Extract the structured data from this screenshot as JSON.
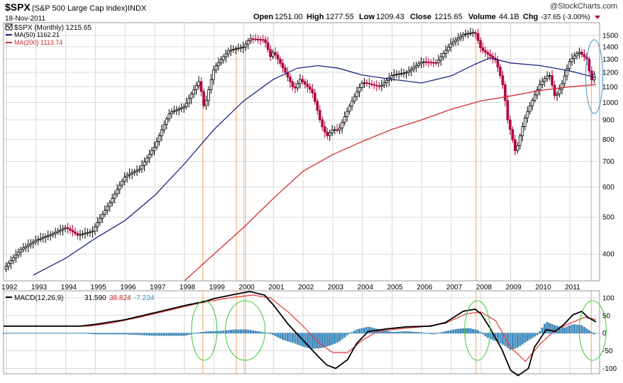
{
  "header": {
    "symbol": "$SPX",
    "name": "(S&P 500 Large Cap Index)",
    "exchange": "INDX",
    "date": "18-Nov-2011",
    "watermark": "@StockCharts.com",
    "open_label": "Open",
    "open": "1251.00",
    "high_label": "High",
    "high": "1277.55",
    "low_label": "Low",
    "low": "1209.43",
    "close_label": "Close",
    "close": "1215.65",
    "volume_label": "Volume",
    "volume": "44.1B",
    "chg_label": "Chg",
    "chg": "-37.65 (-3.00%)"
  },
  "legend": {
    "price": "$SPX (Monthly) 1215.65",
    "ma50": "MA(50) 1162.21",
    "ma200": "MA(200) 1113.74"
  },
  "macd_legend": {
    "label": "MACD(12,26,9)",
    "macd": "31.590",
    "signal": "38.824",
    "hist": "-7.234"
  },
  "colors": {
    "up": "#000000",
    "down": "#b0003c",
    "ma50": "#1a237e",
    "ma200": "#d32f2f",
    "macd": "#000000",
    "signal": "#e53935",
    "hist": "#3d8fc6",
    "vline": "#f4a261",
    "circle_green": "#33cc33",
    "circle_blue": "#3d8fc6"
  },
  "chart_data": [
    {
      "type": "candlestick",
      "title": "$SPX (Monthly)",
      "y_scale": "log",
      "ylim": [
        340,
        1620
      ],
      "y_ticks": [
        400,
        500,
        600,
        700,
        800,
        900,
        1000,
        1100,
        1200,
        1300,
        1400,
        1500
      ],
      "x_ticks": [
        "1992",
        "1993",
        "1994",
        "1995",
        "1996",
        "1997",
        "1998",
        "1999",
        "2000",
        "2001",
        "2002",
        "2003",
        "2004",
        "2005",
        "2006",
        "2007",
        "2008",
        "2009",
        "2010",
        "2011"
      ],
      "x_tick_years": [
        1992,
        1993,
        1994,
        1995,
        1996,
        1997,
        1998,
        1999,
        2000,
        2001,
        2002,
        2003,
        2004,
        2005,
        2006,
        2007,
        2008,
        2009,
        2010,
        2011
      ],
      "xlim": [
        1991.9,
        2012.0
      ],
      "price_path": [
        [
          1991.9,
          365
        ],
        [
          1992.5,
          412
        ],
        [
          1993.0,
          435
        ],
        [
          1993.5,
          450
        ],
        [
          1994.0,
          470
        ],
        [
          1994.4,
          448
        ],
        [
          1994.9,
          459
        ],
        [
          1995.5,
          548
        ],
        [
          1996.0,
          640
        ],
        [
          1996.5,
          670
        ],
        [
          1997.0,
          766
        ],
        [
          1997.5,
          940
        ],
        [
          1998.0,
          975
        ],
        [
          1998.5,
          1140
        ],
        [
          1998.67,
          960
        ],
        [
          1999.0,
          1230
        ],
        [
          1999.5,
          1370
        ],
        [
          2000.0,
          1400
        ],
        [
          2000.2,
          1470
        ],
        [
          2000.7,
          1460
        ],
        [
          2000.9,
          1320
        ],
        [
          2001.0,
          1360
        ],
        [
          2001.7,
          1080
        ],
        [
          2001.9,
          1150
        ],
        [
          2002.3,
          1070
        ],
        [
          2002.6,
          880
        ],
        [
          2002.8,
          815
        ],
        [
          2003.0,
          850
        ],
        [
          2003.2,
          845
        ],
        [
          2003.6,
          990
        ],
        [
          2004.0,
          1130
        ],
        [
          2004.6,
          1100
        ],
        [
          2005.0,
          1180
        ],
        [
          2005.5,
          1200
        ],
        [
          2006.0,
          1280
        ],
        [
          2006.5,
          1270
        ],
        [
          2007.0,
          1430
        ],
        [
          2007.4,
          1510
        ],
        [
          2007.8,
          1530
        ],
        [
          2008.0,
          1380
        ],
        [
          2008.5,
          1290
        ],
        [
          2008.75,
          1100
        ],
        [
          2008.9,
          900
        ],
        [
          2009.17,
          735
        ],
        [
          2009.5,
          920
        ],
        [
          2010.0,
          1120
        ],
        [
          2010.3,
          1190
        ],
        [
          2010.5,
          1030
        ],
        [
          2010.7,
          1100
        ],
        [
          2011.0,
          1290
        ],
        [
          2011.3,
          1360
        ],
        [
          2011.6,
          1290
        ],
        [
          2011.7,
          1130
        ],
        [
          2011.88,
          1216
        ]
      ],
      "ma50_path": [
        [
          1992.9,
          352
        ],
        [
          1994.0,
          390
        ],
        [
          1995.0,
          440
        ],
        [
          1996.0,
          490
        ],
        [
          1997.0,
          570
        ],
        [
          1998.0,
          690
        ],
        [
          1999.0,
          850
        ],
        [
          2000.0,
          1010
        ],
        [
          2001.0,
          1150
        ],
        [
          2001.8,
          1230
        ],
        [
          2002.5,
          1250
        ],
        [
          2003.2,
          1230
        ],
        [
          2004.0,
          1180
        ],
        [
          2005.0,
          1150
        ],
        [
          2006.0,
          1125
        ],
        [
          2007.0,
          1175
        ],
        [
          2007.8,
          1260
        ],
        [
          2008.3,
          1310
        ],
        [
          2009.0,
          1270
        ],
        [
          2010.0,
          1250
        ],
        [
          2011.0,
          1210
        ],
        [
          2011.88,
          1162
        ]
      ],
      "ma200_path": [
        [
          1998.0,
          340
        ],
        [
          1999.0,
          400
        ],
        [
          2000.0,
          470
        ],
        [
          2001.0,
          560
        ],
        [
          2002.0,
          660
        ],
        [
          2003.0,
          730
        ],
        [
          2004.0,
          790
        ],
        [
          2005.0,
          850
        ],
        [
          2006.0,
          900
        ],
        [
          2007.0,
          960
        ],
        [
          2008.0,
          1010
        ],
        [
          2009.0,
          1040
        ],
        [
          2010.0,
          1075
        ],
        [
          2011.0,
          1100
        ],
        [
          2011.88,
          1114
        ]
      ]
    },
    {
      "type": "line",
      "title": "MACD(12,26,9)",
      "ylim": [
        -115,
        120
      ],
      "y_ticks": [
        100,
        50,
        0,
        -50,
        -100
      ],
      "xlim": [
        1991.9,
        2012.0
      ],
      "macd_path": [
        [
          1991.9,
          20
        ],
        [
          1994.5,
          20
        ],
        [
          1995.0,
          25
        ],
        [
          1996.0,
          38
        ],
        [
          1997.0,
          58
        ],
        [
          1998.0,
          78
        ],
        [
          1998.7,
          90
        ],
        [
          1999.0,
          98
        ],
        [
          1999.7,
          110
        ],
        [
          2000.2,
          118
        ],
        [
          2000.7,
          108
        ],
        [
          2001.0,
          80
        ],
        [
          2001.5,
          25
        ],
        [
          2002.0,
          -20
        ],
        [
          2002.5,
          -65
        ],
        [
          2002.8,
          -90
        ],
        [
          2003.1,
          -100
        ],
        [
          2003.5,
          -75
        ],
        [
          2003.8,
          -30
        ],
        [
          2004.2,
          5
        ],
        [
          2004.8,
          12
        ],
        [
          2005.5,
          18
        ],
        [
          2006.3,
          20
        ],
        [
          2006.8,
          30
        ],
        [
          2007.4,
          62
        ],
        [
          2007.8,
          68
        ],
        [
          2008.0,
          55
        ],
        [
          2008.3,
          15
        ],
        [
          2008.7,
          -45
        ],
        [
          2009.0,
          -105
        ],
        [
          2009.25,
          -120
        ],
        [
          2009.6,
          -100
        ],
        [
          2009.8,
          -40
        ],
        [
          2010.2,
          10
        ],
        [
          2010.5,
          5
        ],
        [
          2010.8,
          25
        ],
        [
          2011.1,
          52
        ],
        [
          2011.4,
          62
        ],
        [
          2011.6,
          45
        ],
        [
          2011.88,
          32
        ]
      ],
      "signal_path": [
        [
          1991.9,
          20
        ],
        [
          1994.8,
          20
        ],
        [
          1995.5,
          28
        ],
        [
          1996.5,
          45
        ],
        [
          1997.5,
          65
        ],
        [
          1998.5,
          85
        ],
        [
          1999.5,
          100
        ],
        [
          2000.3,
          108
        ],
        [
          2000.9,
          100
        ],
        [
          2001.5,
          60
        ],
        [
          2002.0,
          20
        ],
        [
          2002.5,
          -25
        ],
        [
          2003.0,
          -55
        ],
        [
          2003.5,
          -55
        ],
        [
          2004.0,
          -20
        ],
        [
          2004.5,
          5
        ],
        [
          2005.2,
          12
        ],
        [
          2006.0,
          18
        ],
        [
          2006.8,
          28
        ],
        [
          2007.5,
          55
        ],
        [
          2008.0,
          60
        ],
        [
          2008.5,
          35
        ],
        [
          2009.0,
          -40
        ],
        [
          2009.5,
          -80
        ],
        [
          2010.0,
          -30
        ],
        [
          2010.5,
          8
        ],
        [
          2011.0,
          28
        ],
        [
          2011.5,
          45
        ],
        [
          2011.88,
          39
        ]
      ],
      "hist_path": [
        [
          1991.9,
          0
        ],
        [
          1994.5,
          0
        ],
        [
          1995.0,
          -3
        ],
        [
          1995.5,
          -3
        ],
        [
          1996.0,
          -3
        ],
        [
          1996.5,
          -5
        ],
        [
          1997.0,
          -7
        ],
        [
          1997.5,
          -7
        ],
        [
          1998.0,
          -7
        ],
        [
          1998.5,
          2
        ],
        [
          1998.8,
          5
        ],
        [
          1999.2,
          6
        ],
        [
          1999.7,
          10
        ],
        [
          2000.1,
          10
        ],
        [
          2000.5,
          5
        ],
        [
          2000.9,
          -2
        ],
        [
          2001.0,
          -5
        ],
        [
          2001.3,
          -18
        ],
        [
          2001.7,
          -28
        ],
        [
          2002.0,
          -38
        ],
        [
          2002.3,
          -44
        ],
        [
          2002.6,
          -42
        ],
        [
          2002.9,
          -35
        ],
        [
          2003.2,
          -25
        ],
        [
          2003.5,
          -5
        ],
        [
          2003.8,
          10
        ],
        [
          2004.2,
          18
        ],
        [
          2004.6,
          10
        ],
        [
          2005.0,
          3
        ],
        [
          2005.5,
          5
        ],
        [
          2006.0,
          2
        ],
        [
          2006.4,
          -3
        ],
        [
          2006.8,
          5
        ],
        [
          2007.2,
          12
        ],
        [
          2007.6,
          14
        ],
        [
          2007.9,
          8
        ],
        [
          2008.2,
          -12
        ],
        [
          2008.5,
          -22
        ],
        [
          2008.8,
          -35
        ],
        [
          2009.0,
          -48
        ],
        [
          2009.25,
          -40
        ],
        [
          2009.6,
          -20
        ],
        [
          2009.9,
          -5
        ],
        [
          2010.2,
          32
        ],
        [
          2010.5,
          22
        ],
        [
          2010.8,
          15
        ],
        [
          2011.1,
          25
        ],
        [
          2011.4,
          22
        ],
        [
          2011.7,
          5
        ],
        [
          2011.88,
          -7
        ]
      ]
    }
  ],
  "annotation_years": [
    1998.62,
    1999.75,
    2000.05,
    2007.83,
    2011.72
  ]
}
